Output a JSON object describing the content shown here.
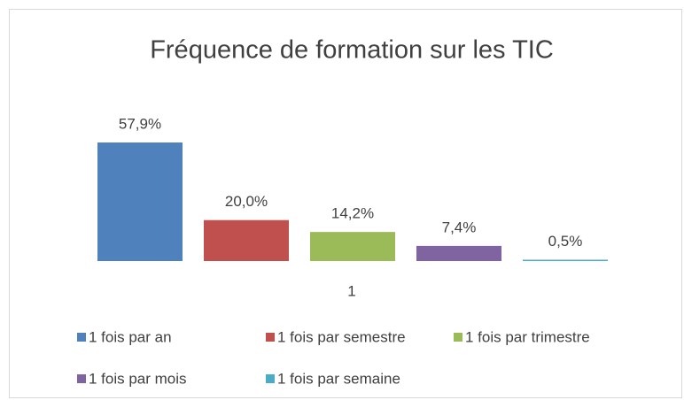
{
  "chart_data": {
    "type": "bar",
    "title": "Fréquence de formation sur les TIC",
    "categories": [
      "1"
    ],
    "series": [
      {
        "name": "1 fois par an",
        "color": "#4f81bd",
        "values": [
          57.9
        ],
        "value_labels": [
          "57,9%"
        ]
      },
      {
        "name": "1 fois par semestre",
        "color": "#c0504d",
        "values": [
          20.0
        ],
        "value_labels": [
          "20,0%"
        ]
      },
      {
        "name": "1 fois par trimestre",
        "color": "#9bbb59",
        "values": [
          14.2
        ],
        "value_labels": [
          "14,2%"
        ]
      },
      {
        "name": "1 fois par mois",
        "color": "#8064a2",
        "values": [
          7.4
        ],
        "value_labels": [
          "7,4%"
        ]
      },
      {
        "name": "1 fois par semaine",
        "color": "#4bacc6",
        "values": [
          0.5
        ],
        "value_labels": [
          "0,5%"
        ]
      }
    ]
  }
}
